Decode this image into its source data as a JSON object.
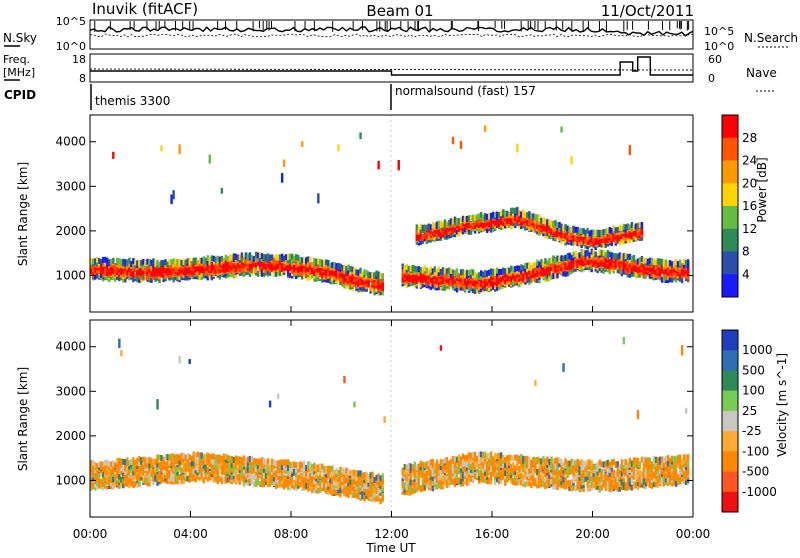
{
  "header": {
    "station": "Inuvik (fitACF)",
    "beam": "Beam 01",
    "date": "11/Oct/2011"
  },
  "noise_panel": {
    "left_label": "N.Sky",
    "left_ticks": [
      "10^5",
      "10^0"
    ],
    "right_label": "N.Search",
    "right_ticks": [
      "10^5",
      "10^0"
    ]
  },
  "freq_panel": {
    "left_label_1": "Freq.",
    "left_label_2": "[MHz]",
    "left_ticks": [
      "18",
      "8"
    ],
    "right_label": "Nave",
    "right_ticks": [
      "60",
      "0"
    ]
  },
  "cpid_panel": {
    "label": "CPID",
    "modes": [
      {
        "name": "themis 3300",
        "start_hour": 0
      },
      {
        "name": "normalsound (fast) 157",
        "start_hour": 12
      }
    ]
  },
  "xaxis": {
    "label": "Time UT",
    "ticks": [
      "00:00",
      "04:00",
      "08:00",
      "12:00",
      "16:00",
      "20:00",
      "00:00"
    ]
  },
  "colors": {
    "power": [
      "#1a1aff",
      "#2a4fa8",
      "#2e8b57",
      "#66bb44",
      "#ffd400",
      "#ff9900",
      "#ff5500",
      "#ff0000"
    ],
    "velocity": [
      "#1f3fbf",
      "#2f6db5",
      "#2e8b57",
      "#77cc55",
      "#c8c8c0",
      "#ffaa33",
      "#ff8800",
      "#ff5522",
      "#ee1111"
    ]
  },
  "chart_data": [
    {
      "type": "heatmap",
      "title": "Power",
      "ylabel": "Slant Range [km]",
      "xlabel": "",
      "ylim": [
        180,
        4600
      ],
      "xlim": [
        0,
        24
      ],
      "yticks": [
        1000,
        2000,
        3000,
        4000
      ],
      "colorbar": {
        "label": "Power [dB]",
        "ticks": [
          4,
          8,
          12,
          16,
          20,
          24,
          28
        ]
      },
      "features": [
        {
          "kind": "band",
          "from": 0.0,
          "to": 11.7,
          "center": [
            1150,
            1130,
            1100,
            1120,
            1150,
            1200,
            1250,
            1230,
            1180,
            1080,
            900,
            800
          ],
          "width": 380
        },
        {
          "kind": "band",
          "from": 12.4,
          "to": 23.8,
          "center": [
            1000,
            950,
            900,
            850,
            950,
            1050,
            1200,
            1350,
            1300,
            1200,
            1100,
            1100
          ],
          "width": 360
        },
        {
          "kind": "band",
          "from": 13.0,
          "to": 22.0,
          "center": [
            1900,
            2000,
            2150,
            2200,
            2300,
            2100,
            1900,
            1800,
            1900,
            2000
          ],
          "width": 300
        },
        {
          "kind": "scatter",
          "from": 0.0,
          "to": 24.0,
          "range": [
            2500,
            4300
          ],
          "density": 0.07
        }
      ]
    },
    {
      "type": "heatmap",
      "title": "Velocity",
      "ylabel": "Slant Range [km]",
      "xlabel": "Time UT",
      "ylim": [
        180,
        4600
      ],
      "xlim": [
        0,
        24
      ],
      "yticks": [
        1000,
        2000,
        3000,
        4000
      ],
      "colorbar": {
        "label": "Velocity [m s^-1]",
        "ticks": [
          1000,
          500,
          100,
          25,
          -25,
          -100,
          -500,
          -1000
        ]
      },
      "features": [
        {
          "kind": "band",
          "from": 0.0,
          "to": 11.7,
          "center": [
            1100,
            1150,
            1200,
            1250,
            1300,
            1250,
            1200,
            1150,
            1100,
            1000,
            900,
            800
          ],
          "width": 520
        },
        {
          "kind": "band",
          "from": 12.4,
          "to": 23.8,
          "center": [
            1000,
            1100,
            1200,
            1300,
            1250,
            1200,
            1150,
            1100,
            1100,
            1150,
            1200,
            1250
          ],
          "width": 560
        },
        {
          "kind": "scatter",
          "from": 0.0,
          "to": 24.0,
          "range": [
            2300,
            4300
          ],
          "density": 0.06
        }
      ]
    }
  ]
}
